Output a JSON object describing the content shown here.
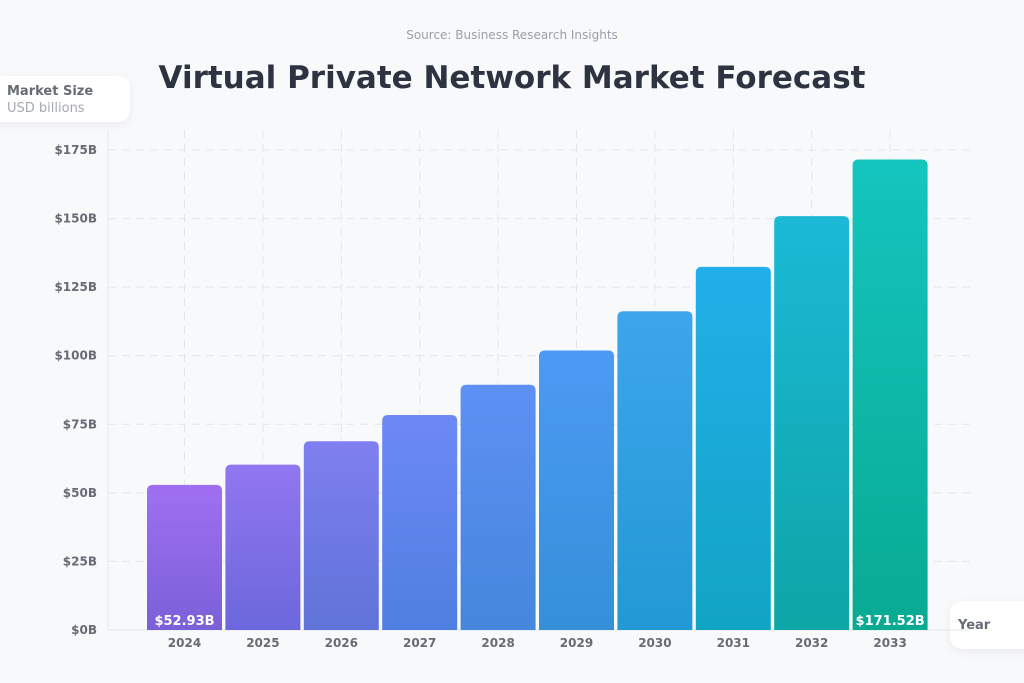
{
  "source": "Source: Business Research Insights",
  "chart_data": {
    "type": "bar",
    "title": "Virtual Private Network Market Forecast",
    "ylabel": "Market Size",
    "yunit": "USD billions",
    "xlabel": "Year",
    "ylim": [
      0,
      175
    ],
    "yticks": [
      0,
      25,
      50,
      75,
      100,
      125,
      150,
      175
    ],
    "ytick_labels": [
      "$0B",
      "$25B",
      "$50B",
      "$75B",
      "$100B",
      "$125B",
      "$150B",
      "$175B"
    ],
    "grid": true,
    "categories": [
      "2024",
      "2025",
      "2026",
      "2027",
      "2028",
      "2029",
      "2030",
      "2031",
      "2032",
      "2033"
    ],
    "values": [
      52.93,
      60.3,
      68.8,
      78.4,
      89.4,
      101.9,
      116.2,
      132.4,
      150.9,
      171.52
    ],
    "data_labels": {
      "0": "$52.93B",
      "9": "$171.52B"
    },
    "colors_top": [
      "#a06ff2",
      "#9176f0",
      "#7f7ff0",
      "#6d88f5",
      "#5e90f4",
      "#4c9af5",
      "#3da5ec",
      "#22afe9",
      "#1bb9d6",
      "#14c5bf"
    ],
    "colors_bottom": [
      "#7a60d8",
      "#6c67dc",
      "#5f73d8",
      "#4f7fe0",
      "#4587dc",
      "#3590d8",
      "#2299d4",
      "#12a4c4",
      "#0ea5a6",
      "#08aa92"
    ]
  }
}
